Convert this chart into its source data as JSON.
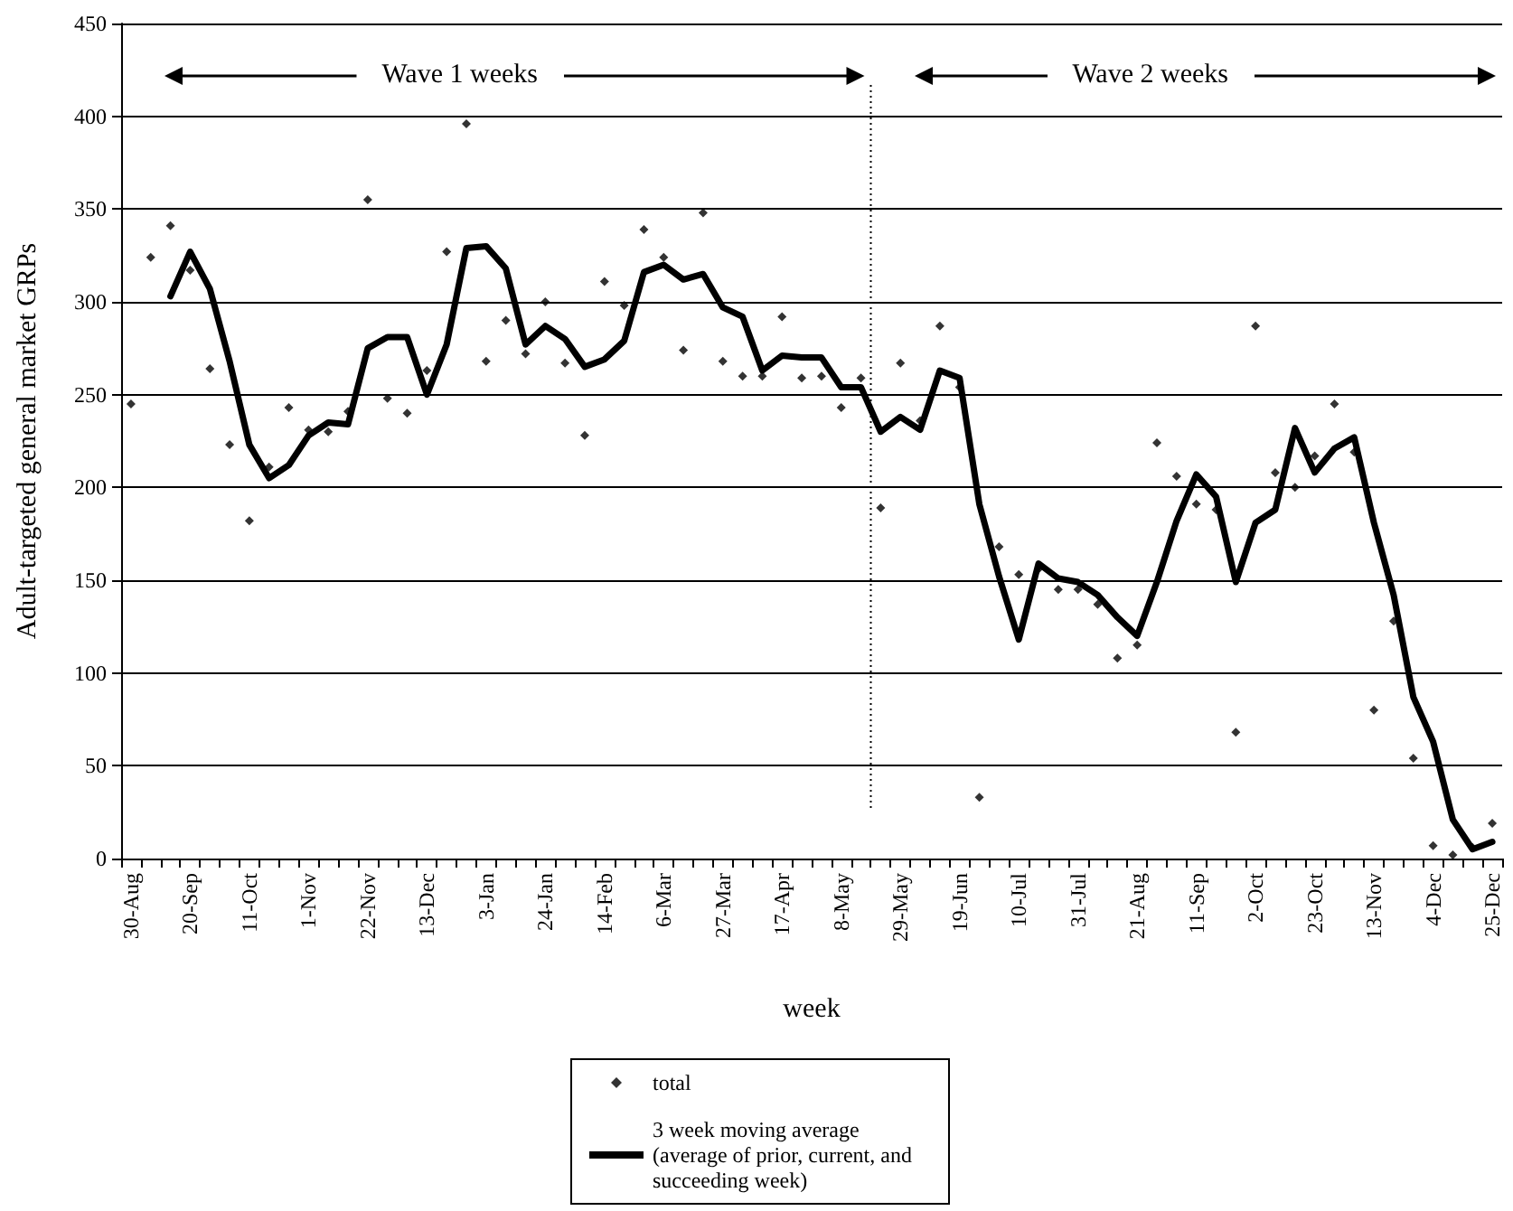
{
  "chart_data": {
    "type": "line",
    "xlabel": "week",
    "ylabel": "Adult-targeted general market GRPs",
    "annotations": [
      "Wave 1 weeks",
      "Wave 2 weeks"
    ],
    "categories": [
      "30-Aug",
      null,
      null,
      "20-Sep",
      null,
      null,
      "11-Oct",
      null,
      null,
      "1-Nov",
      null,
      null,
      "22-Nov",
      null,
      null,
      "13-Dec",
      null,
      null,
      "3-Jan",
      null,
      null,
      "24-Jan",
      null,
      null,
      "14-Feb",
      null,
      null,
      "6-Mar",
      null,
      null,
      "27-Mar",
      null,
      null,
      "17-Apr",
      null,
      null,
      "8-May",
      null,
      null,
      "29-May",
      null,
      null,
      "19-Jun",
      null,
      null,
      "10-Jul",
      null,
      null,
      "31-Jul",
      null,
      null,
      "21-Aug",
      null,
      null,
      "11-Sep",
      null,
      null,
      "2-Oct",
      null,
      null,
      "23-Oct",
      null,
      null,
      "13-Nov",
      null,
      null,
      "4-Dec",
      null,
      null,
      "25-Dec"
    ],
    "series": [
      {
        "name": "total",
        "type": "scatter",
        "marker": "diamond",
        "color": "#000000",
        "values": [
          245,
          324,
          341,
          317,
          264,
          223,
          182,
          211,
          243,
          231,
          230,
          241,
          355,
          248,
          240,
          263,
          327,
          396,
          268,
          290,
          272,
          300,
          267,
          228,
          311,
          298,
          339,
          324,
          274,
          348,
          268,
          260,
          260,
          292,
          259,
          260,
          243,
          259,
          189,
          267,
          236,
          287,
          254,
          33,
          168,
          153,
          156,
          145,
          145,
          137,
          108,
          115,
          224,
          206,
          191,
          188,
          68,
          287,
          208,
          200,
          217,
          245,
          219,
          80,
          128,
          54,
          7,
          2,
          6,
          19
        ]
      },
      {
        "name": "3 week moving average (average of prior, current, and succeeding week)",
        "marker": "none",
        "line_style": "solid",
        "color": "#000000",
        "values": [
          null,
          null,
          303,
          327,
          307,
          268,
          223,
          205,
          212,
          228,
          235,
          234,
          275,
          281,
          281,
          250,
          277,
          329,
          330,
          318,
          277,
          287,
          280,
          265,
          269,
          279,
          316,
          320,
          312,
          315,
          297,
          292,
          263,
          271,
          270,
          270,
          254,
          254,
          230,
          238,
          231,
          263,
          259,
          191,
          152,
          118,
          159,
          151,
          149,
          142,
          130,
          120,
          149,
          182,
          207,
          195,
          149,
          181,
          188,
          232,
          208,
          221,
          227,
          181,
          142,
          87,
          63,
          21,
          5,
          9
        ]
      }
    ],
    "ylim": [
      0,
      450
    ],
    "yticks": [
      0,
      50,
      100,
      150,
      200,
      250,
      300,
      350,
      400,
      450
    ],
    "grid": "y",
    "legend": "bottom"
  }
}
